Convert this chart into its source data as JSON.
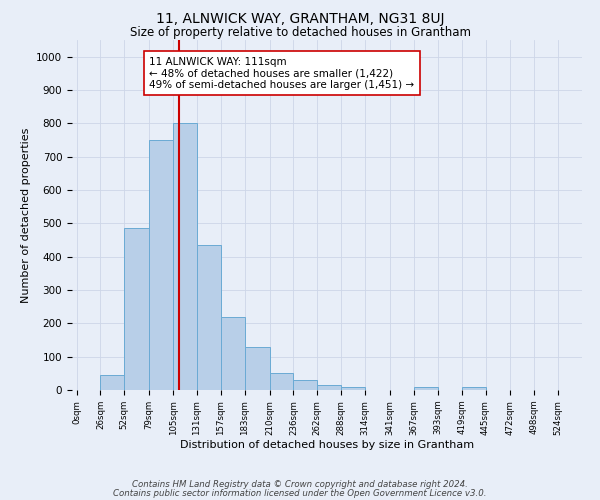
{
  "title_line1": "11, ALNWICK WAY, GRANTHAM, NG31 8UJ",
  "title_line2": "Size of property relative to detached houses in Grantham",
  "xlabel": "Distribution of detached houses by size in Grantham",
  "ylabel": "Number of detached properties",
  "bar_left_edges": [
    0,
    26,
    52,
    79,
    105,
    131,
    157,
    183,
    210,
    236,
    262,
    288,
    314,
    341,
    367,
    393,
    419,
    445,
    472,
    498
  ],
  "bar_widths": [
    26,
    26,
    27,
    26,
    26,
    26,
    26,
    27,
    26,
    26,
    26,
    26,
    27,
    26,
    26,
    26,
    26,
    27,
    26,
    26
  ],
  "bar_heights": [
    0,
    45,
    485,
    750,
    800,
    435,
    220,
    128,
    50,
    30,
    15,
    10,
    0,
    0,
    8,
    0,
    8,
    0,
    0,
    0
  ],
  "bar_color": "#b8cfe8",
  "bar_edgecolor": "#6aaad4",
  "bar_linewidth": 0.7,
  "vline_x": 111,
  "vline_color": "#cc0000",
  "vline_linewidth": 1.5,
  "annotation_line1": "11 ALNWICK WAY: 111sqm",
  "annotation_line2": "← 48% of detached houses are smaller (1,422)",
  "annotation_line3": "49% of semi-detached houses are larger (1,451) →",
  "annotation_box_edgecolor": "#cc0000",
  "annotation_box_facecolor": "#ffffff",
  "annotation_fontsize": 7.5,
  "tick_labels": [
    "0sqm",
    "26sqm",
    "52sqm",
    "79sqm",
    "105sqm",
    "131sqm",
    "157sqm",
    "183sqm",
    "210sqm",
    "236sqm",
    "262sqm",
    "288sqm",
    "314sqm",
    "341sqm",
    "367sqm",
    "393sqm",
    "419sqm",
    "445sqm",
    "472sqm",
    "498sqm",
    "524sqm"
  ],
  "tick_positions": [
    0,
    26,
    52,
    79,
    105,
    131,
    157,
    183,
    210,
    236,
    262,
    288,
    314,
    341,
    367,
    393,
    419,
    445,
    472,
    498,
    524
  ],
  "xlim": [
    -5,
    550
  ],
  "ylim": [
    0,
    1050
  ],
  "yticks": [
    0,
    100,
    200,
    300,
    400,
    500,
    600,
    700,
    800,
    900,
    1000
  ],
  "grid_color": "#cdd6e8",
  "background_color": "#e8eef8",
  "footer_line1": "Contains HM Land Registry data © Crown copyright and database right 2024.",
  "footer_line2": "Contains public sector information licensed under the Open Government Licence v3.0.",
  "footer_fontsize": 6.2,
  "title1_fontsize": 10,
  "title2_fontsize": 8.5,
  "xlabel_fontsize": 8,
  "ylabel_fontsize": 8,
  "xtick_fontsize": 6.2,
  "ytick_fontsize": 7.5
}
